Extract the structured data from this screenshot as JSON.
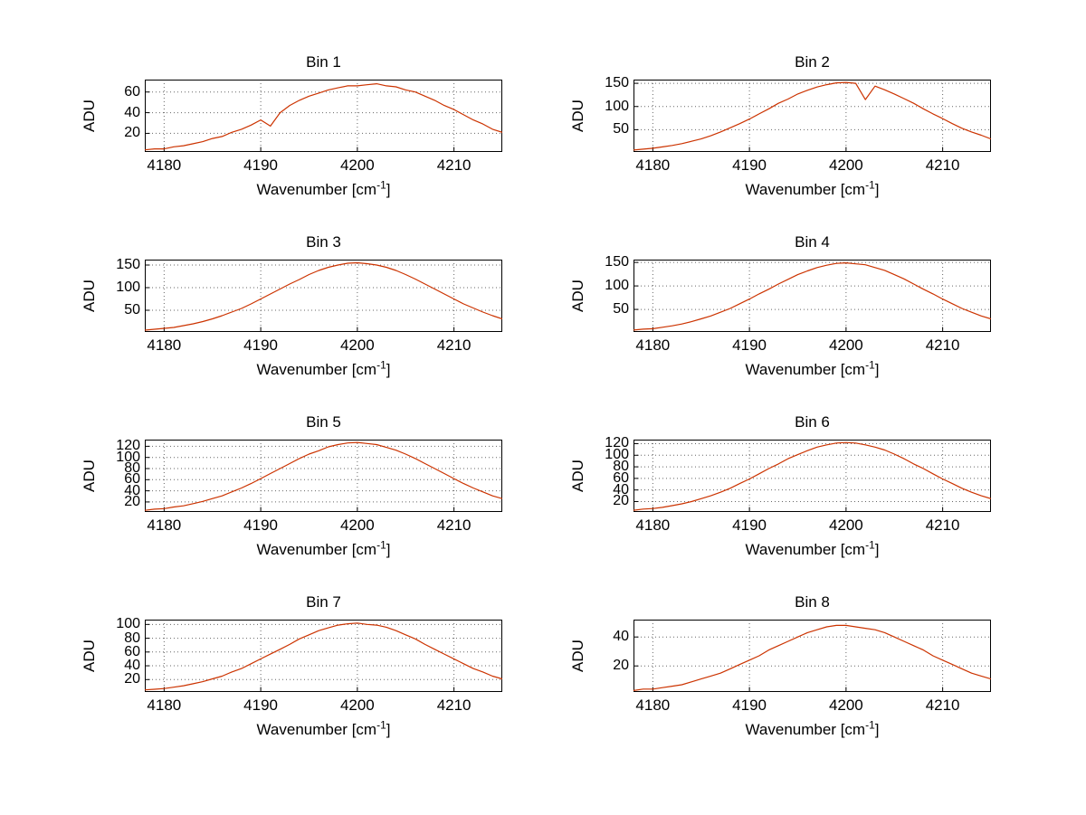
{
  "figure": {
    "background": "#ffffff",
    "ylabel": "ADU",
    "xlabel_prefix": "Wavenumber [cm",
    "xlabel_sup": "-1",
    "xlabel_suffix": "]",
    "line_color": "#cc3300",
    "grid_color": "#666666",
    "axis_color": "#000000",
    "text_color": "#000000",
    "xticks": [
      4180,
      4190,
      4200,
      4210
    ],
    "xlim": [
      4178,
      4215
    ],
    "x_values": [
      4178,
      4179,
      4180,
      4181,
      4182,
      4183,
      4184,
      4185,
      4186,
      4187,
      4188,
      4189,
      4190,
      4191,
      4192,
      4193,
      4194,
      4195,
      4196,
      4197,
      4198,
      4199,
      4200,
      4201,
      4202,
      4203,
      4204,
      4205,
      4206,
      4207,
      4208,
      4209,
      4210,
      4211,
      4212,
      4213,
      4214,
      4215
    ]
  },
  "chart_data": [
    {
      "type": "line",
      "title": "Bin 1",
      "ylabel": "ADU",
      "xlabel": "Wavenumber [cm^-1]",
      "grid": true,
      "legend": "none",
      "yticks": [
        20,
        40,
        60
      ],
      "ylim": [
        2,
        72
      ],
      "xlim": [
        4178,
        4215
      ],
      "x_start": 4178,
      "x_step": 1,
      "values": [
        4,
        5,
        5,
        7,
        8,
        10,
        12,
        15,
        17,
        21,
        24,
        28,
        33,
        27,
        40,
        47,
        52,
        56,
        59,
        62,
        64,
        66,
        66,
        67,
        68,
        66,
        65,
        62,
        60,
        56,
        52,
        47,
        43,
        38,
        33,
        29,
        24,
        21
      ]
    },
    {
      "type": "line",
      "title": "Bin 2",
      "ylabel": "ADU",
      "xlabel": "Wavenumber [cm^-1]",
      "grid": true,
      "legend": "none",
      "yticks": [
        50,
        100,
        150
      ],
      "ylim": [
        2,
        158
      ],
      "xlim": [
        4178,
        4215
      ],
      "x_start": 4178,
      "x_step": 1,
      "values": [
        6,
        8,
        10,
        13,
        16,
        20,
        25,
        30,
        37,
        45,
        54,
        63,
        73,
        84,
        95,
        107,
        116,
        127,
        135,
        142,
        147,
        151,
        152,
        150,
        115,
        144,
        136,
        127,
        117,
        107,
        95,
        84,
        74,
        63,
        53,
        45,
        38,
        30
      ]
    },
    {
      "type": "line",
      "title": "Bin 3",
      "ylabel": "ADU",
      "xlabel": "Wavenumber [cm^-1]",
      "grid": true,
      "legend": "none",
      "yticks": [
        50,
        100,
        150
      ],
      "ylim": [
        2,
        162
      ],
      "xlim": [
        4178,
        4215
      ],
      "x_start": 4178,
      "x_step": 1,
      "values": [
        6,
        8,
        10,
        12,
        16,
        20,
        25,
        31,
        38,
        46,
        54,
        64,
        75,
        86,
        97,
        108,
        118,
        129,
        138,
        145,
        150,
        154,
        155,
        153,
        150,
        145,
        138,
        129,
        119,
        108,
        97,
        86,
        75,
        64,
        55,
        46,
        38,
        31
      ]
    },
    {
      "type": "line",
      "title": "Bin 4",
      "ylabel": "ADU",
      "xlabel": "Wavenumber [cm^-1]",
      "grid": true,
      "legend": "none",
      "yticks": [
        50,
        100,
        150
      ],
      "ylim": [
        2,
        156
      ],
      "xlim": [
        4178,
        4215
      ],
      "x_start": 4178,
      "x_step": 1,
      "values": [
        6,
        8,
        9,
        12,
        15,
        19,
        24,
        30,
        36,
        44,
        52,
        62,
        72,
        83,
        93,
        104,
        114,
        124,
        132,
        139,
        144,
        148,
        149,
        147,
        145,
        139,
        133,
        124,
        115,
        104,
        93,
        83,
        72,
        62,
        52,
        44,
        36,
        30
      ]
    },
    {
      "type": "line",
      "title": "Bin 5",
      "ylabel": "ADU",
      "xlabel": "Wavenumber [cm^-1]",
      "grid": true,
      "legend": "none",
      "yticks": [
        20,
        40,
        60,
        80,
        100,
        120
      ],
      "ylim": [
        2,
        132
      ],
      "xlim": [
        4178,
        4215
      ],
      "x_start": 4178,
      "x_step": 1,
      "values": [
        5,
        7,
        8,
        11,
        13,
        17,
        21,
        26,
        31,
        38,
        45,
        53,
        62,
        71,
        80,
        89,
        98,
        106,
        112,
        119,
        123,
        126,
        127,
        125,
        123,
        118,
        113,
        106,
        98,
        89,
        80,
        71,
        62,
        53,
        45,
        38,
        31,
        26
      ]
    },
    {
      "type": "line",
      "title": "Bin 6",
      "ylabel": "ADU",
      "xlabel": "Wavenumber [cm^-1]",
      "grid": true,
      "legend": "none",
      "yticks": [
        20,
        40,
        60,
        80,
        100,
        120
      ],
      "ylim": [
        2,
        127
      ],
      "xlim": [
        4178,
        4215
      ],
      "x_start": 4178,
      "x_step": 1,
      "values": [
        5,
        7,
        8,
        10,
        13,
        16,
        20,
        25,
        30,
        36,
        43,
        51,
        59,
        68,
        77,
        85,
        94,
        101,
        108,
        114,
        118,
        121,
        122,
        121,
        118,
        114,
        109,
        102,
        94,
        85,
        77,
        68,
        59,
        51,
        43,
        36,
        30,
        25
      ]
    },
    {
      "type": "line",
      "title": "Bin 7",
      "ylabel": "ADU",
      "xlabel": "Wavenumber [cm^-1]",
      "grid": true,
      "legend": "none",
      "yticks": [
        20,
        40,
        60,
        80,
        100
      ],
      "ylim": [
        2,
        107
      ],
      "xlim": [
        4178,
        4215
      ],
      "x_start": 4178,
      "x_step": 1,
      "values": [
        5,
        6,
        7,
        9,
        11,
        14,
        17,
        21,
        25,
        31,
        36,
        43,
        50,
        57,
        64,
        71,
        79,
        85,
        91,
        95,
        99,
        101,
        102,
        100,
        99,
        96,
        91,
        85,
        79,
        71,
        64,
        57,
        50,
        43,
        36,
        31,
        25,
        21
      ]
    },
    {
      "type": "line",
      "title": "Bin 8",
      "ylabel": "ADU",
      "xlabel": "Wavenumber [cm^-1]",
      "grid": true,
      "legend": "none",
      "yticks": [
        20,
        40
      ],
      "ylim": [
        2,
        52
      ],
      "xlim": [
        4178,
        4215
      ],
      "x_start": 4178,
      "x_step": 1,
      "values": [
        3,
        4,
        4,
        5,
        6,
        7,
        9,
        11,
        13,
        15,
        18,
        21,
        24,
        27,
        31,
        34,
        37,
        40,
        43,
        45,
        47,
        48,
        48,
        47,
        46,
        45,
        43,
        40,
        37,
        34,
        31,
        27,
        24,
        21,
        18,
        15,
        13,
        11
      ]
    }
  ]
}
